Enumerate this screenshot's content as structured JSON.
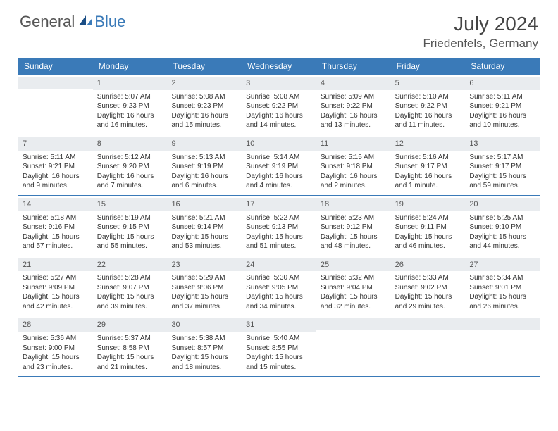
{
  "brand": {
    "general": "General",
    "blue": "Blue"
  },
  "title": "July 2024",
  "location": "Friedenfels, Germany",
  "colors": {
    "header_bg": "#3a7ab8",
    "header_text": "#ffffff",
    "daynum_bg": "#e9ecef",
    "border": "#3a7ab8",
    "text": "#333333",
    "page_bg": "#ffffff"
  },
  "day_labels": [
    "Sunday",
    "Monday",
    "Tuesday",
    "Wednesday",
    "Thursday",
    "Friday",
    "Saturday"
  ],
  "weeks": [
    [
      {
        "day": "",
        "sunrise": "",
        "sunset": "",
        "daylight": ""
      },
      {
        "day": "1",
        "sunrise": "Sunrise: 5:07 AM",
        "sunset": "Sunset: 9:23 PM",
        "daylight": "Daylight: 16 hours and 16 minutes."
      },
      {
        "day": "2",
        "sunrise": "Sunrise: 5:08 AM",
        "sunset": "Sunset: 9:23 PM",
        "daylight": "Daylight: 16 hours and 15 minutes."
      },
      {
        "day": "3",
        "sunrise": "Sunrise: 5:08 AM",
        "sunset": "Sunset: 9:22 PM",
        "daylight": "Daylight: 16 hours and 14 minutes."
      },
      {
        "day": "4",
        "sunrise": "Sunrise: 5:09 AM",
        "sunset": "Sunset: 9:22 PM",
        "daylight": "Daylight: 16 hours and 13 minutes."
      },
      {
        "day": "5",
        "sunrise": "Sunrise: 5:10 AM",
        "sunset": "Sunset: 9:22 PM",
        "daylight": "Daylight: 16 hours and 11 minutes."
      },
      {
        "day": "6",
        "sunrise": "Sunrise: 5:11 AM",
        "sunset": "Sunset: 9:21 PM",
        "daylight": "Daylight: 16 hours and 10 minutes."
      }
    ],
    [
      {
        "day": "7",
        "sunrise": "Sunrise: 5:11 AM",
        "sunset": "Sunset: 9:21 PM",
        "daylight": "Daylight: 16 hours and 9 minutes."
      },
      {
        "day": "8",
        "sunrise": "Sunrise: 5:12 AM",
        "sunset": "Sunset: 9:20 PM",
        "daylight": "Daylight: 16 hours and 7 minutes."
      },
      {
        "day": "9",
        "sunrise": "Sunrise: 5:13 AM",
        "sunset": "Sunset: 9:19 PM",
        "daylight": "Daylight: 16 hours and 6 minutes."
      },
      {
        "day": "10",
        "sunrise": "Sunrise: 5:14 AM",
        "sunset": "Sunset: 9:19 PM",
        "daylight": "Daylight: 16 hours and 4 minutes."
      },
      {
        "day": "11",
        "sunrise": "Sunrise: 5:15 AM",
        "sunset": "Sunset: 9:18 PM",
        "daylight": "Daylight: 16 hours and 2 minutes."
      },
      {
        "day": "12",
        "sunrise": "Sunrise: 5:16 AM",
        "sunset": "Sunset: 9:17 PM",
        "daylight": "Daylight: 16 hours and 1 minute."
      },
      {
        "day": "13",
        "sunrise": "Sunrise: 5:17 AM",
        "sunset": "Sunset: 9:17 PM",
        "daylight": "Daylight: 15 hours and 59 minutes."
      }
    ],
    [
      {
        "day": "14",
        "sunrise": "Sunrise: 5:18 AM",
        "sunset": "Sunset: 9:16 PM",
        "daylight": "Daylight: 15 hours and 57 minutes."
      },
      {
        "day": "15",
        "sunrise": "Sunrise: 5:19 AM",
        "sunset": "Sunset: 9:15 PM",
        "daylight": "Daylight: 15 hours and 55 minutes."
      },
      {
        "day": "16",
        "sunrise": "Sunrise: 5:21 AM",
        "sunset": "Sunset: 9:14 PM",
        "daylight": "Daylight: 15 hours and 53 minutes."
      },
      {
        "day": "17",
        "sunrise": "Sunrise: 5:22 AM",
        "sunset": "Sunset: 9:13 PM",
        "daylight": "Daylight: 15 hours and 51 minutes."
      },
      {
        "day": "18",
        "sunrise": "Sunrise: 5:23 AM",
        "sunset": "Sunset: 9:12 PM",
        "daylight": "Daylight: 15 hours and 48 minutes."
      },
      {
        "day": "19",
        "sunrise": "Sunrise: 5:24 AM",
        "sunset": "Sunset: 9:11 PM",
        "daylight": "Daylight: 15 hours and 46 minutes."
      },
      {
        "day": "20",
        "sunrise": "Sunrise: 5:25 AM",
        "sunset": "Sunset: 9:10 PM",
        "daylight": "Daylight: 15 hours and 44 minutes."
      }
    ],
    [
      {
        "day": "21",
        "sunrise": "Sunrise: 5:27 AM",
        "sunset": "Sunset: 9:09 PM",
        "daylight": "Daylight: 15 hours and 42 minutes."
      },
      {
        "day": "22",
        "sunrise": "Sunrise: 5:28 AM",
        "sunset": "Sunset: 9:07 PM",
        "daylight": "Daylight: 15 hours and 39 minutes."
      },
      {
        "day": "23",
        "sunrise": "Sunrise: 5:29 AM",
        "sunset": "Sunset: 9:06 PM",
        "daylight": "Daylight: 15 hours and 37 minutes."
      },
      {
        "day": "24",
        "sunrise": "Sunrise: 5:30 AM",
        "sunset": "Sunset: 9:05 PM",
        "daylight": "Daylight: 15 hours and 34 minutes."
      },
      {
        "day": "25",
        "sunrise": "Sunrise: 5:32 AM",
        "sunset": "Sunset: 9:04 PM",
        "daylight": "Daylight: 15 hours and 32 minutes."
      },
      {
        "day": "26",
        "sunrise": "Sunrise: 5:33 AM",
        "sunset": "Sunset: 9:02 PM",
        "daylight": "Daylight: 15 hours and 29 minutes."
      },
      {
        "day": "27",
        "sunrise": "Sunrise: 5:34 AM",
        "sunset": "Sunset: 9:01 PM",
        "daylight": "Daylight: 15 hours and 26 minutes."
      }
    ],
    [
      {
        "day": "28",
        "sunrise": "Sunrise: 5:36 AM",
        "sunset": "Sunset: 9:00 PM",
        "daylight": "Daylight: 15 hours and 23 minutes."
      },
      {
        "day": "29",
        "sunrise": "Sunrise: 5:37 AM",
        "sunset": "Sunset: 8:58 PM",
        "daylight": "Daylight: 15 hours and 21 minutes."
      },
      {
        "day": "30",
        "sunrise": "Sunrise: 5:38 AM",
        "sunset": "Sunset: 8:57 PM",
        "daylight": "Daylight: 15 hours and 18 minutes."
      },
      {
        "day": "31",
        "sunrise": "Sunrise: 5:40 AM",
        "sunset": "Sunset: 8:55 PM",
        "daylight": "Daylight: 15 hours and 15 minutes."
      },
      {
        "day": "",
        "sunrise": "",
        "sunset": "",
        "daylight": ""
      },
      {
        "day": "",
        "sunrise": "",
        "sunset": "",
        "daylight": ""
      },
      {
        "day": "",
        "sunrise": "",
        "sunset": "",
        "daylight": ""
      }
    ]
  ]
}
